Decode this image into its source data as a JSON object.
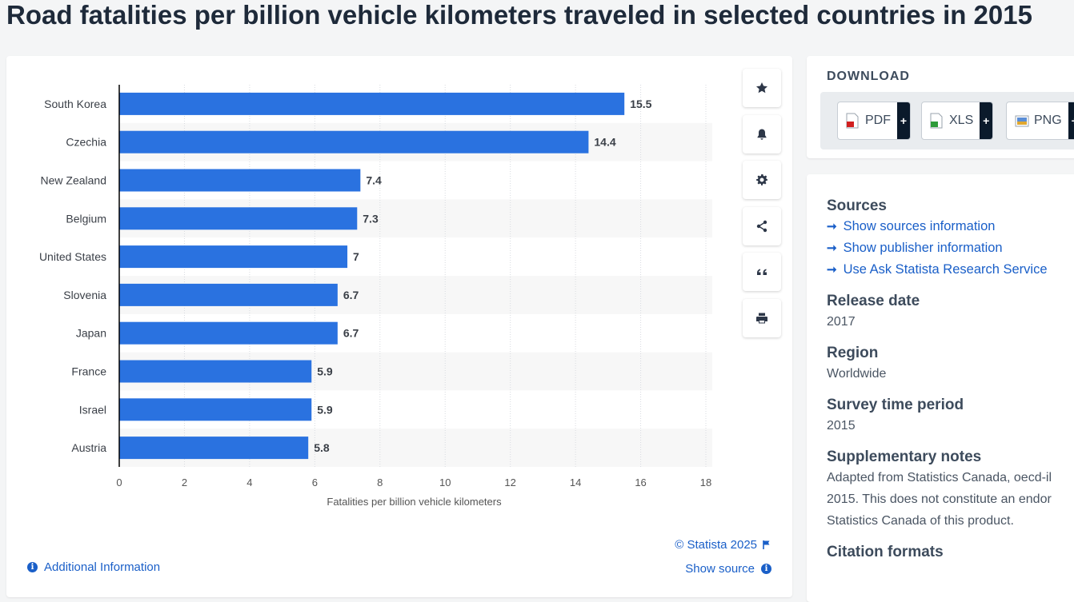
{
  "page": {
    "title": "Road fatalities per billion vehicle kilometers traveled in selected countries in 2015"
  },
  "chart_data": {
    "type": "bar",
    "orientation": "horizontal",
    "categories": [
      "South Korea",
      "Czechia",
      "New Zealand",
      "Belgium",
      "United States",
      "Slovenia",
      "Japan",
      "France",
      "Israel",
      "Austria"
    ],
    "values": [
      15.5,
      14.4,
      7.4,
      7.3,
      7,
      6.7,
      6.7,
      5.9,
      5.9,
      5.8
    ],
    "value_labels": [
      "15.5",
      "14.4",
      "7.4",
      "7.3",
      "7",
      "6.7",
      "6.7",
      "5.9",
      "5.9",
      "5.8"
    ],
    "xlabel": "Fatalities per billion vehicle kilometers",
    "ylabel": "",
    "xlim": [
      0,
      18
    ],
    "xticks": [
      0,
      2,
      4,
      6,
      8,
      10,
      12,
      14,
      16,
      18
    ],
    "grid": true,
    "bar_color": "#2a72e0",
    "stripe_color": "#f7f7f7"
  },
  "chart_footer": {
    "additional_info": "Additional Information",
    "copyright": "© Statista 2025",
    "show_source": "Show source"
  },
  "toolbar": {
    "buttons": [
      {
        "icon": "star-icon"
      },
      {
        "icon": "bell-icon"
      },
      {
        "icon": "gear-icon"
      },
      {
        "icon": "share-icon"
      },
      {
        "icon": "quote-icon"
      },
      {
        "icon": "print-icon"
      }
    ]
  },
  "download": {
    "title": "DOWNLOAD",
    "buttons": [
      {
        "label": "PDF",
        "plus": "+",
        "icon": "pdf-file-icon"
      },
      {
        "label": "XLS",
        "plus": "+",
        "icon": "xls-file-icon"
      },
      {
        "label": "PNG",
        "plus": "+",
        "icon": "png-file-icon"
      }
    ]
  },
  "meta": {
    "sources_heading": "Sources",
    "source_links": [
      "Show sources information",
      "Show publisher information",
      "Use Ask Statista Research Service"
    ],
    "release_heading": "Release date",
    "release_value": "2017",
    "region_heading": "Region",
    "region_value": "Worldwide",
    "survey_heading": "Survey time period",
    "survey_value": "2015",
    "notes_heading": "Supplementary notes",
    "notes_lines": [
      "Adapted from Statistics Canada, oecd-il",
      "2015. This does not constitute an endor",
      "Statistics Canada of this product."
    ],
    "citation_heading": "Citation formats"
  },
  "colors": {
    "accent": "#1a5fc8",
    "bar": "#2a72e0",
    "dark": "#0b1a2b"
  }
}
